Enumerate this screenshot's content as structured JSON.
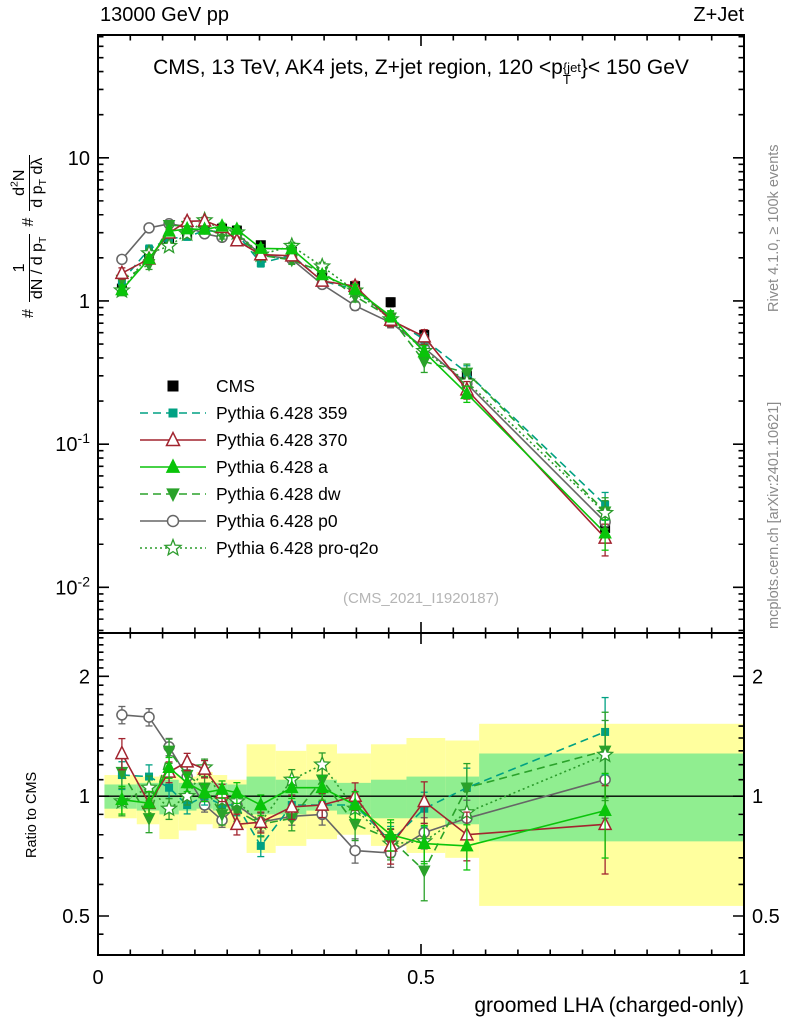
{
  "header": {
    "left": "13000 GeV pp",
    "right": "Z+Jet"
  },
  "panel_title": {
    "prefix": "CMS, 13 TeV, AK4 jets, Z+jet region, 120 <p",
    "sup": "{jet",
    "sub": "T",
    "suffix": "}< 150 GeV"
  },
  "side_notes": {
    "top": "Rivet 4.1.0, ≥ 100k events",
    "bottom": "mcplots.cern.ch [arXiv:2401.10621]"
  },
  "watermark": "(CMS_2021_I1920187)",
  "ratio_ylabel": "Ratio to CMS",
  "main_ylabel": {
    "hash1": "#",
    "frac1_num": "1",
    "frac1_den": "dN / d p_{T}",
    "hash2": "#",
    "frac2_num": "d^{2}N",
    "frac2_den": "d p_{T} dλ"
  },
  "chart_data": {
    "type": "line",
    "xlabel": "groomed LHA (charged-only)",
    "xlim": [
      0,
      1
    ],
    "xticks": [
      {
        "v": 0,
        "label": "0"
      },
      {
        "v": 0.5,
        "label": "0.5"
      },
      {
        "v": 1,
        "label": "1"
      }
    ],
    "x_minor_step": 0.05,
    "main_axis": {
      "log": true,
      "ylim": [
        0.0048,
        72
      ],
      "yticks": [
        {
          "v": 10,
          "label": "10"
        },
        {
          "v": 1,
          "label": "1"
        },
        {
          "v": 0.1,
          "label": "10^{-1}"
        },
        {
          "v": 0.01,
          "label": "10^{-2}"
        }
      ]
    },
    "ratio_axis": {
      "log": true,
      "ylim": [
        0.399,
        2.57
      ],
      "ref": 1,
      "yticks": [
        {
          "v": 2,
          "label": "2"
        },
        {
          "v": 1,
          "label": "1"
        },
        {
          "v": 0.5,
          "label": "0.5"
        }
      ],
      "y_minor": [
        0.45,
        0.6,
        0.7,
        0.8,
        0.9,
        1.1,
        1.2,
        1.3,
        1.4,
        1.5,
        1.6,
        1.7,
        1.8,
        1.9,
        2.1,
        2.2,
        2.3,
        2.4,
        2.5
      ]
    },
    "x": [
      0.037,
      0.079,
      0.11,
      0.138,
      0.165,
      0.192,
      0.215,
      0.252,
      0.3,
      0.347,
      0.398,
      0.453,
      0.505,
      0.571,
      0.785
    ],
    "cms": {
      "id": "cms",
      "label": "CMS",
      "color": "#000000",
      "line": "none",
      "marker": "square-filled",
      "marker_size": 10,
      "values": [
        1.22,
        2.05,
        2.6,
        2.95,
        3.1,
        3.2,
        3.1,
        2.45,
        2.2,
        1.45,
        1.27,
        0.98,
        0.58,
        0.3,
        0.026
      ],
      "err": [
        0.07,
        0.05,
        0.04,
        0.04,
        0.04,
        0.04,
        0.04,
        0.04,
        0.05,
        0.05,
        0.06,
        0.07,
        0.08,
        0.1,
        0.15
      ]
    },
    "series": [
      {
        "id": "p359",
        "label": "Pythia 6.428 359",
        "color": "#00a183",
        "line": "dashed",
        "marker": "square-filled",
        "marker_size": 8,
        "ratio": [
          1.13,
          1.12,
          1.05,
          0.95,
          1.0,
          0.95,
          0.95,
          0.75,
          0.95,
          0.95,
          0.95,
          0.77,
          0.93,
          1.05,
          1.45
        ],
        "err": [
          0.08,
          0.07,
          0.06,
          0.05,
          0.05,
          0.05,
          0.06,
          0.06,
          0.06,
          0.07,
          0.08,
          0.09,
          0.1,
          0.12,
          0.22
        ]
      },
      {
        "id": "p370",
        "label": "Pythia 6.428 370",
        "color": "#a2242f",
        "line": "solid",
        "marker": "triangle-open",
        "marker_size": 12,
        "ratio": [
          1.28,
          0.96,
          1.15,
          1.22,
          1.17,
          1.02,
          0.85,
          0.86,
          0.94,
          0.95,
          1.0,
          0.75,
          0.97,
          0.8,
          0.85
        ],
        "err": [
          0.09,
          0.07,
          0.06,
          0.05,
          0.05,
          0.05,
          0.06,
          0.06,
          0.07,
          0.07,
          0.08,
          0.1,
          0.12,
          0.14,
          0.25
        ]
      },
      {
        "id": "a",
        "label": "Pythia 6.428 a",
        "color": "#0ac40a",
        "line": "solid",
        "marker": "triangle-filled",
        "marker_size": 11,
        "ratio": [
          0.98,
          0.96,
          1.18,
          1.08,
          1.02,
          1.04,
          1.02,
          0.95,
          1.05,
          1.05,
          0.95,
          0.8,
          0.76,
          0.75,
          0.92
        ],
        "err": [
          0.08,
          0.07,
          0.06,
          0.05,
          0.05,
          0.05,
          0.06,
          0.06,
          0.06,
          0.07,
          0.08,
          0.09,
          0.11,
          0.13,
          0.24
        ]
      },
      {
        "id": "dw",
        "label": "Pythia 6.428 dw",
        "color": "#2aa22a",
        "line": "dashed",
        "marker": "triangle-down-filled",
        "marker_size": 11,
        "ratio": [
          1.15,
          0.88,
          1.3,
          1.13,
          1.05,
          0.9,
          0.92,
          0.85,
          0.88,
          1.1,
          0.85,
          0.78,
          0.65,
          1.05,
          1.3
        ],
        "err": [
          0.09,
          0.08,
          0.07,
          0.06,
          0.06,
          0.06,
          0.06,
          0.07,
          0.07,
          0.08,
          0.09,
          0.1,
          0.16,
          0.15,
          0.25
        ]
      },
      {
        "id": "p0",
        "label": "Pythia 6.428 p0",
        "color": "#666666",
        "line": "solid",
        "marker": "circle-open",
        "marker_size": 10,
        "ratio": [
          1.6,
          1.58,
          1.33,
          1.12,
          0.95,
          0.87,
          0.95,
          0.86,
          0.89,
          0.9,
          0.73,
          0.72,
          0.81,
          0.88,
          1.1
        ],
        "err": [
          0.05,
          0.05,
          0.05,
          0.04,
          0.04,
          0.04,
          0.05,
          0.05,
          0.05,
          0.06,
          0.07,
          0.08,
          0.09,
          0.11,
          0.2
        ]
      },
      {
        "id": "q2o",
        "label": "Pythia 6.428 pro-q2o",
        "color": "#2c9c2c",
        "line": "dotted",
        "marker": "star-open",
        "marker_size": 13,
        "ratio": [
          0.97,
          1.05,
          0.93,
          1.0,
          1.18,
          0.98,
          0.97,
          0.86,
          1.1,
          1.2,
          0.93,
          0.76,
          0.77,
          0.91,
          1.27
        ],
        "err": [
          0.08,
          0.07,
          0.06,
          0.05,
          0.05,
          0.05,
          0.06,
          0.06,
          0.06,
          0.07,
          0.08,
          0.09,
          0.11,
          0.13,
          0.22
        ]
      }
    ],
    "legend_order": [
      "cms",
      "p359",
      "p370",
      "a",
      "dw",
      "p0",
      "q2o"
    ],
    "draw_order": [
      "p0",
      "p359",
      "dw",
      "q2o",
      "p370",
      "a"
    ],
    "bands": {
      "outer_color": "#ffff9e",
      "inner_color": "#90ee90",
      "edges": [
        0.01,
        0.06,
        0.095,
        0.125,
        0.1525,
        0.1775,
        0.2,
        0.23,
        0.275,
        0.3225,
        0.37,
        0.4225,
        0.4775,
        0.5375,
        0.59,
        1.0
      ],
      "outer": [
        [
          0.88,
          1.13
        ],
        [
          0.85,
          1.12
        ],
        [
          0.78,
          1.13
        ],
        [
          0.82,
          1.12
        ],
        [
          0.85,
          1.15
        ],
        [
          0.83,
          1.13
        ],
        [
          0.83,
          1.1
        ],
        [
          0.72,
          1.35
        ],
        [
          0.75,
          1.3
        ],
        [
          0.78,
          1.35
        ],
        [
          0.8,
          1.28
        ],
        [
          0.75,
          1.35
        ],
        [
          0.72,
          1.4
        ],
        [
          0.7,
          1.38
        ],
        [
          0.53,
          1.52
        ]
      ],
      "inner": [
        [
          0.93,
          1.07
        ],
        [
          0.92,
          1.08
        ],
        [
          0.9,
          1.1
        ],
        [
          0.92,
          1.08
        ],
        [
          0.93,
          1.08
        ],
        [
          0.92,
          1.08
        ],
        [
          0.92,
          1.07
        ],
        [
          0.9,
          1.12
        ],
        [
          0.9,
          1.1
        ],
        [
          0.92,
          1.1
        ],
        [
          0.9,
          1.08
        ],
        [
          0.88,
          1.1
        ],
        [
          0.88,
          1.12
        ],
        [
          0.85,
          1.12
        ],
        [
          0.77,
          1.28
        ]
      ]
    }
  }
}
